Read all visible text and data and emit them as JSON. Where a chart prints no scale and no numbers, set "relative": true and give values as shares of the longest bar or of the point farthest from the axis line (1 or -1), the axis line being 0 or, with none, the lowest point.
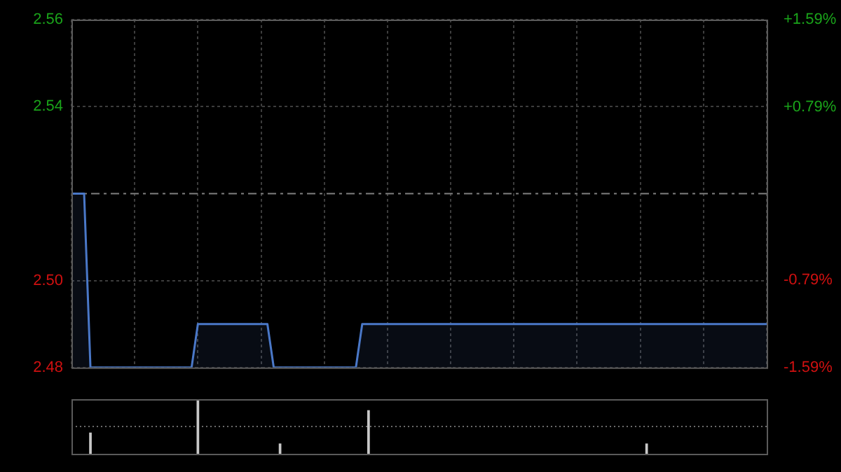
{
  "chart_data": [
    {
      "type": "area",
      "categories": [
        null,
        null,
        null,
        null,
        null,
        null,
        null,
        null,
        null,
        null,
        null,
        null,
        null,
        null,
        null,
        null,
        null,
        null,
        null,
        null,
        null,
        null,
        null,
        null,
        null,
        null,
        null,
        null,
        null,
        null,
        null,
        null,
        null,
        null,
        null,
        null,
        null,
        null,
        null,
        null,
        null,
        null,
        null,
        null,
        null,
        null,
        null,
        null,
        null,
        null,
        null,
        null,
        null,
        null,
        null,
        null,
        null,
        null,
        null,
        null,
        null,
        null,
        null,
        null,
        null,
        null,
        null,
        null,
        null,
        null,
        null,
        null,
        null,
        null,
        null,
        null,
        null,
        null,
        null,
        null,
        null,
        null,
        null,
        null,
        null,
        null,
        null,
        null,
        null,
        null,
        null,
        null,
        null,
        null,
        null,
        null,
        null,
        null,
        null,
        null,
        null,
        null,
        null,
        null,
        null,
        null,
        null,
        null,
        null,
        null,
        null
      ],
      "series": [
        {
          "color": "#4a78c8",
          "values": [
            2.52,
            2.52,
            2.52,
            2.48,
            2.48,
            2.48,
            2.48,
            2.48,
            2.48,
            2.48,
            2.48,
            2.48,
            2.48,
            2.48,
            2.48,
            2.48,
            2.48,
            2.48,
            2.48,
            2.48,
            2.49,
            2.49,
            2.49,
            2.49,
            2.49,
            2.49,
            2.49,
            2.49,
            2.49,
            2.49,
            2.49,
            2.49,
            2.48,
            2.48,
            2.48,
            2.48,
            2.48,
            2.48,
            2.48,
            2.48,
            2.48,
            2.48,
            2.48,
            2.48,
            2.48,
            2.48,
            2.49,
            2.49,
            2.49,
            2.49,
            2.49,
            2.49,
            2.49,
            2.49,
            2.49,
            2.49,
            2.49,
            2.49,
            2.49,
            2.49,
            2.49,
            2.49,
            2.49,
            2.49,
            2.49,
            2.49,
            2.49,
            2.49,
            2.49,
            2.49,
            2.49,
            2.49,
            2.49,
            2.49,
            2.49,
            2.49,
            2.49,
            2.49,
            2.49,
            2.49,
            2.49,
            2.49,
            2.49,
            2.49,
            2.49,
            2.49,
            2.49,
            2.49,
            2.49,
            2.49,
            2.49,
            2.49,
            2.49,
            2.49,
            2.49,
            2.49,
            2.49,
            2.49,
            2.49,
            2.49,
            2.49,
            2.49,
            2.49,
            2.49,
            2.49,
            2.49,
            2.49,
            2.49,
            2.49,
            2.49,
            2.49
          ]
        }
      ],
      "ylim": [
        2.48,
        2.56
      ],
      "yticks": [
        {
          "value": 2.56,
          "label": "2.56"
        },
        {
          "value": 2.54,
          "label": "2.54"
        },
        {
          "value": 2.5,
          "label": "2.50"
        },
        {
          "value": 2.48,
          "label": "2.48"
        }
      ],
      "y2lim": [
        -1.59,
        1.59
      ],
      "y2ticks": [
        {
          "value": 1.59,
          "label": "+1.59%"
        },
        {
          "value": 0.79,
          "label": "+0.79%"
        },
        {
          "value": -0.79,
          "label": "-0.79%"
        },
        {
          "value": -1.59,
          "label": "-1.59%"
        }
      ],
      "ref_lines": [
        {
          "axis": "y",
          "value": 2.52,
          "color": "#808080",
          "line_style": "dashed"
        }
      ],
      "grid": true,
      "legend": false,
      "tick_labels": "y"
    },
    {
      "type": "bar",
      "relative": true,
      "color": "#c8c8c8",
      "categories": [
        null,
        null,
        null,
        null,
        null,
        null,
        null,
        null,
        null,
        null,
        null,
        null,
        null,
        null,
        null,
        null,
        null,
        null,
        null,
        null,
        null,
        null,
        null,
        null,
        null,
        null,
        null,
        null,
        null,
        null,
        null,
        null,
        null,
        null,
        null,
        null,
        null,
        null,
        null,
        null,
        null,
        null,
        null,
        null,
        null,
        null,
        null,
        null,
        null,
        null,
        null,
        null,
        null,
        null,
        null,
        null,
        null,
        null,
        null,
        null,
        null,
        null,
        null,
        null,
        null,
        null,
        null,
        null,
        null,
        null,
        null,
        null,
        null,
        null,
        null,
        null,
        null,
        null,
        null,
        null,
        null,
        null,
        null,
        null,
        null,
        null,
        null,
        null,
        null,
        null,
        null,
        null,
        null,
        null,
        null,
        null,
        null,
        null,
        null,
        null,
        null,
        null,
        null,
        null,
        null,
        null,
        null,
        null,
        null,
        null,
        null
      ],
      "values": [
        null,
        null,
        null,
        0.38,
        null,
        null,
        null,
        null,
        null,
        null,
        null,
        null,
        null,
        null,
        null,
        null,
        null,
        null,
        null,
        null,
        1,
        null,
        null,
        null,
        null,
        null,
        null,
        null,
        null,
        null,
        null,
        null,
        null,
        0.18,
        null,
        null,
        null,
        null,
        null,
        null,
        null,
        null,
        null,
        null,
        null,
        null,
        null,
        0.79,
        null,
        null,
        null,
        null,
        null,
        null,
        null,
        null,
        null,
        null,
        null,
        null,
        null,
        null,
        null,
        null,
        null,
        null,
        null,
        null,
        null,
        null,
        null,
        null,
        null,
        null,
        null,
        null,
        null,
        null,
        null,
        null,
        null,
        null,
        null,
        null,
        null,
        null,
        null,
        null,
        null,
        null,
        null,
        0.18,
        null,
        null,
        null,
        null,
        null,
        null,
        null,
        null,
        null,
        null,
        null,
        null,
        null,
        null,
        null,
        null,
        null,
        null,
        null
      ],
      "ref_lines": [
        {
          "axis": "y",
          "value": 0.5,
          "color": "#6a6a6a",
          "line_style": "dotted"
        }
      ],
      "tick_labels": false,
      "legend": false
    }
  ]
}
